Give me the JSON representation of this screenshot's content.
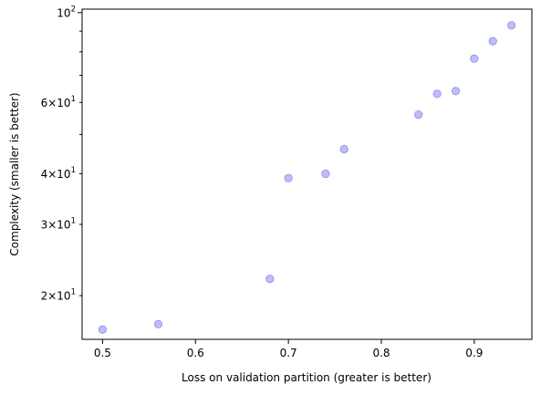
{
  "chart_data": {
    "type": "scatter",
    "title": "",
    "xlabel": "Loss on validation partition (greater is better)",
    "ylabel": "Complexity (smaller is better)",
    "xlim": [
      0.478,
      0.962
    ],
    "ylim": [
      15.6,
      102
    ],
    "yscale": "log",
    "grid": false,
    "marker_color": "#7b7bf0",
    "marker_alpha": 0.5,
    "x_ticks": [
      {
        "value": 0.5,
        "label": "0.5"
      },
      {
        "value": 0.6,
        "label": "0.6"
      },
      {
        "value": 0.7,
        "label": "0.7"
      },
      {
        "value": 0.8,
        "label": "0.8"
      },
      {
        "value": 0.9,
        "label": "0.9"
      }
    ],
    "y_major_ticks": [
      {
        "value": 100,
        "base": "10",
        "exp": "2"
      }
    ],
    "y_minor_ticks": [
      {
        "value": 20,
        "base": "2×10",
        "exp": "1"
      },
      {
        "value": 30,
        "base": "3×10",
        "exp": "1"
      },
      {
        "value": 40,
        "base": "4×10",
        "exp": "1"
      },
      {
        "value": 60,
        "base": "6×10",
        "exp": "1"
      }
    ],
    "y_unlabeled_minor_ticks": [
      50,
      70,
      80,
      90
    ],
    "points": [
      {
        "x": 0.5,
        "y": 16.5
      },
      {
        "x": 0.56,
        "y": 17.0
      },
      {
        "x": 0.68,
        "y": 22.0
      },
      {
        "x": 0.7,
        "y": 39.0
      },
      {
        "x": 0.74,
        "y": 40.0
      },
      {
        "x": 0.76,
        "y": 46.0
      },
      {
        "x": 0.84,
        "y": 56.0
      },
      {
        "x": 0.86,
        "y": 63.0
      },
      {
        "x": 0.88,
        "y": 64.0
      },
      {
        "x": 0.9,
        "y": 77.0
      },
      {
        "x": 0.92,
        "y": 85.0
      },
      {
        "x": 0.94,
        "y": 93.0
      }
    ]
  }
}
